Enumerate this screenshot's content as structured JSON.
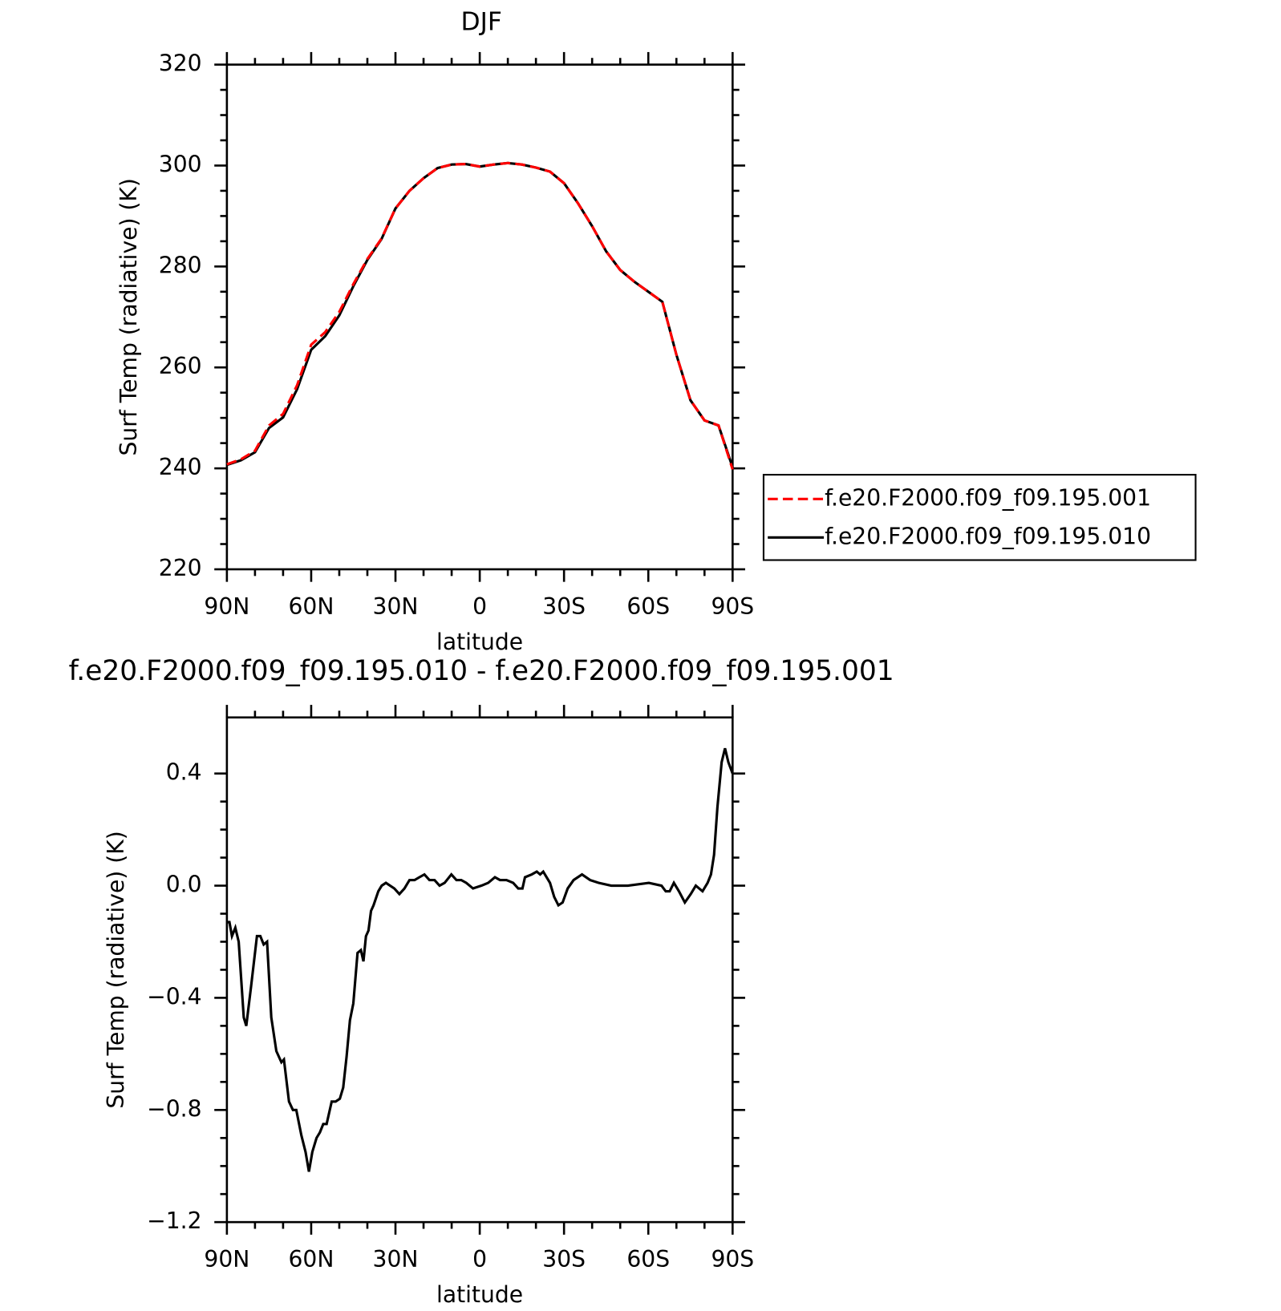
{
  "chart_data": [
    {
      "type": "line",
      "title": "DJF",
      "xlabel": "latitude",
      "ylabel": "Surf Temp (radiative) (K)",
      "x": [
        90,
        85,
        80,
        75,
        70,
        65,
        60,
        55,
        50,
        45,
        40,
        35,
        30,
        25,
        20,
        15,
        10,
        5,
        0,
        -5,
        -10,
        -15,
        -20,
        -25,
        -30,
        -35,
        -40,
        -45,
        -50,
        -55,
        -60,
        -65,
        -70,
        -75,
        -80,
        -85,
        -90
      ],
      "series": [
        {
          "name": "f.e20.F2000.f09_f09.195.001",
          "color": "#ff0000",
          "style": "dashed",
          "values": [
            240.8,
            241.8,
            243.5,
            248.5,
            250.8,
            256.5,
            264.5,
            267.0,
            271.0,
            276.5,
            281.5,
            285.5,
            291.5,
            295.0,
            297.5,
            299.5,
            300.2,
            300.3,
            299.8,
            300.2,
            300.5,
            300.2,
            299.6,
            298.8,
            296.5,
            292.5,
            288.0,
            283.0,
            279.3,
            277.0,
            275.0,
            273.0,
            262.5,
            253.5,
            249.5,
            248.5,
            239.8
          ]
        },
        {
          "name": "f.e20.F2000.f09_f09.195.010",
          "color": "#000000",
          "style": "solid",
          "values": [
            240.7,
            241.6,
            243.2,
            248.0,
            250.1,
            255.7,
            263.5,
            266.2,
            270.3,
            276.1,
            281.3,
            285.4,
            291.5,
            295.0,
            297.5,
            299.5,
            300.2,
            300.3,
            299.8,
            300.2,
            300.5,
            300.2,
            299.6,
            298.8,
            296.5,
            292.5,
            288.0,
            283.0,
            279.3,
            277.0,
            275.0,
            273.0,
            262.5,
            253.5,
            249.5,
            248.5,
            240.2
          ]
        }
      ],
      "xlim": [
        90,
        -90
      ],
      "xticks": [
        {
          "value": 90,
          "label": "90N"
        },
        {
          "value": 60,
          "label": "60N"
        },
        {
          "value": 30,
          "label": "30N"
        },
        0,
        {
          "value": -30,
          "label": "30S"
        },
        {
          "value": -60,
          "label": "60S"
        },
        {
          "value": -90,
          "label": "90S"
        }
      ],
      "ylim": [
        220,
        320
      ],
      "yticks": [
        220,
        240,
        260,
        280,
        300,
        320
      ],
      "legend": "outside-right"
    },
    {
      "type": "line",
      "title": "f.e20.F2000.f09_f09.195.010 - f.e20.F2000.f09_f09.195.001",
      "xlabel": "latitude",
      "ylabel": "Surf Temp (radiative) (K)",
      "x": [
        90,
        89.1,
        88.2,
        87.0,
        85.8,
        84.0,
        83.1,
        81.4,
        79.3,
        78.1,
        76.9,
        75.7,
        74.2,
        72.4,
        70.6,
        69.7,
        67.9,
        66.5,
        65.3,
        63.5,
        62.0,
        60.8,
        59.6,
        58.1,
        56.9,
        55.7,
        54.5,
        52.7,
        51.3,
        49.8,
        48.6,
        47.4,
        46.2,
        45.0,
        43.5,
        42.3,
        41.4,
        40.5,
        39.6,
        38.7,
        37.8,
        36.1,
        34.9,
        33.4,
        31.9,
        30.4,
        28.6,
        26.8,
        25.0,
        23.2,
        21.5,
        19.7,
        17.9,
        16.1,
        14.3,
        12.5,
        10.1,
        8.3,
        6.6,
        4.8,
        2.4,
        -0.6,
        -3.0,
        -5.4,
        -7.2,
        -9.5,
        -11.9,
        -13.7,
        -15.2,
        -16.1,
        -18.5,
        -20.3,
        -21.5,
        -22.6,
        -23.8,
        -25.0,
        -26.5,
        -28.0,
        -29.5,
        -31.3,
        -33.4,
        -36.4,
        -39.3,
        -42.3,
        -46.8,
        -52.7,
        -60.2,
        -64.7,
        -66.2,
        -67.6,
        -69.1,
        -70.9,
        -73.0,
        -75.1,
        -76.9,
        -79.3,
        -81.1,
        -82.3,
        -83.4,
        -84.6,
        -86.1,
        -87.3,
        -88.5,
        -90
      ],
      "values": [
        -0.13,
        -0.13,
        -0.18,
        -0.15,
        -0.2,
        -0.47,
        -0.5,
        -0.36,
        -0.18,
        -0.18,
        -0.21,
        -0.2,
        -0.47,
        -0.59,
        -0.63,
        -0.62,
        -0.77,
        -0.8,
        -0.8,
        -0.89,
        -0.95,
        -1.02,
        -0.95,
        -0.9,
        -0.88,
        -0.85,
        -0.85,
        -0.77,
        -0.77,
        -0.76,
        -0.72,
        -0.61,
        -0.48,
        -0.42,
        -0.24,
        -0.23,
        -0.27,
        -0.18,
        -0.16,
        -0.09,
        -0.07,
        -0.02,
        0.0,
        0.01,
        0.0,
        -0.01,
        -0.03,
        -0.01,
        0.02,
        0.02,
        0.03,
        0.04,
        0.02,
        0.02,
        0.0,
        0.01,
        0.04,
        0.02,
        0.02,
        0.01,
        -0.01,
        0.0,
        0.01,
        0.03,
        0.02,
        0.02,
        0.01,
        -0.01,
        -0.01,
        0.03,
        0.04,
        0.05,
        0.04,
        0.05,
        0.03,
        0.01,
        -0.04,
        -0.07,
        -0.06,
        -0.01,
        0.02,
        0.04,
        0.02,
        0.01,
        0.0,
        0.0,
        0.01,
        0.0,
        -0.02,
        -0.02,
        0.01,
        -0.02,
        -0.06,
        -0.03,
        0.0,
        -0.02,
        0.01,
        0.04,
        0.11,
        0.28,
        0.44,
        0.49,
        0.44,
        0.4
      ],
      "color": "#000000",
      "style": "solid",
      "xlim": [
        90,
        -90
      ],
      "xticks": [
        {
          "value": 90,
          "label": "90N"
        },
        {
          "value": 60,
          "label": "60N"
        },
        {
          "value": 30,
          "label": "30N"
        },
        0,
        {
          "value": -30,
          "label": "30S"
        },
        {
          "value": -60,
          "label": "60S"
        },
        {
          "value": -90,
          "label": "90S"
        }
      ],
      "ylim": [
        -1.2,
        0.6
      ],
      "yticks": [
        {
          "value": -1.2,
          "label": "−1.2"
        },
        {
          "value": -0.8,
          "label": "−0.8"
        },
        {
          "value": -0.4,
          "label": "−0.4"
        },
        {
          "value": 0,
          "label": "0.0"
        },
        0.4
      ]
    }
  ]
}
